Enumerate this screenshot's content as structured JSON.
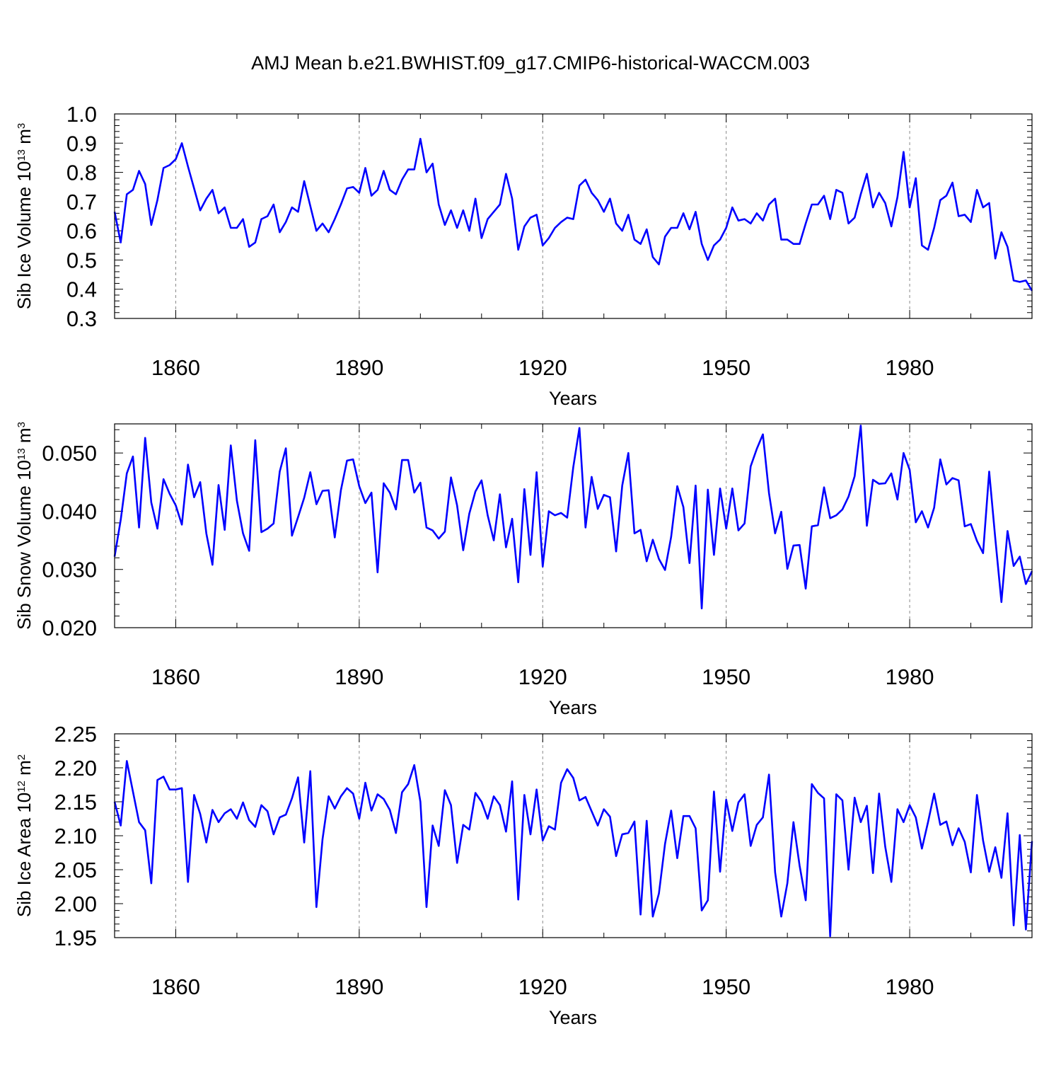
{
  "title": "AMJ Mean b.e21.BWHIST.f09_g17.CMIP6-historical-WACCM.003",
  "colors": {
    "line": "#0000ff",
    "axis": "#000000",
    "grid": "#888888"
  },
  "chart_data": [
    {
      "type": "line",
      "ylabel": "Sib Ice Volume 10",
      "ylabel_sup": "13",
      "ylabel_unit": " m",
      "ylabel_unit_sup": "3",
      "xlabel": "Years",
      "xlim": [
        1850,
        2000
      ],
      "ylim": [
        0.3,
        1.0
      ],
      "xticks": [
        1860,
        1890,
        1920,
        1950,
        1980
      ],
      "xtick_labels": [
        "1860",
        "1890",
        "1920",
        "1950",
        "1980"
      ],
      "yticks": [
        0.3,
        0.4,
        0.5,
        0.6,
        0.7,
        0.8,
        0.9,
        1.0
      ],
      "ytick_labels": [
        "0.3",
        "0.4",
        "0.5",
        "0.6",
        "0.7",
        "0.8",
        "0.9",
        "1.0"
      ],
      "series": [
        {
          "name": "Sib Ice Volume",
          "start_year": 1850,
          "values": [
            0.665,
            0.56,
            0.725,
            0.74,
            0.805,
            0.76,
            0.62,
            0.705,
            0.815,
            0.825,
            0.845,
            0.9,
            0.82,
            0.745,
            0.67,
            0.71,
            0.74,
            0.66,
            0.68,
            0.61,
            0.61,
            0.64,
            0.545,
            0.56,
            0.64,
            0.65,
            0.69,
            0.595,
            0.63,
            0.68,
            0.665,
            0.77,
            0.685,
            0.6,
            0.625,
            0.595,
            0.64,
            0.69,
            0.745,
            0.75,
            0.73,
            0.815,
            0.72,
            0.74,
            0.805,
            0.74,
            0.725,
            0.775,
            0.81,
            0.81,
            0.915,
            0.8,
            0.83,
            0.69,
            0.62,
            0.67,
            0.61,
            0.67,
            0.6,
            0.71,
            0.575,
            0.64,
            0.665,
            0.69,
            0.795,
            0.71,
            0.535,
            0.615,
            0.645,
            0.655,
            0.55,
            0.575,
            0.61,
            0.63,
            0.645,
            0.64,
            0.755,
            0.775,
            0.73,
            0.705,
            0.665,
            0.71,
            0.625,
            0.6,
            0.655,
            0.57,
            0.555,
            0.605,
            0.51,
            0.485,
            0.58,
            0.61,
            0.61,
            0.66,
            0.605,
            0.665,
            0.555,
            0.5,
            0.55,
            0.57,
            0.61,
            0.68,
            0.635,
            0.64,
            0.625,
            0.66,
            0.635,
            0.69,
            0.71,
            0.57,
            0.57,
            0.555,
            0.555,
            0.625,
            0.69,
            0.69,
            0.72,
            0.64,
            0.74,
            0.73,
            0.625,
            0.645,
            0.725,
            0.795,
            0.68,
            0.73,
            0.695,
            0.615,
            0.715,
            0.87,
            0.68,
            0.78,
            0.55,
            0.535,
            0.61,
            0.705,
            0.72,
            0.765,
            0.65,
            0.655,
            0.63,
            0.74,
            0.68,
            0.695,
            0.505,
            0.595,
            0.545,
            0.43,
            0.425,
            0.43,
            0.395
          ]
        }
      ]
    },
    {
      "type": "line",
      "ylabel": "Sib Snow Volume 10",
      "ylabel_sup": "13",
      "ylabel_unit": " m",
      "ylabel_unit_sup": "3",
      "xlabel": "Years",
      "xlim": [
        1850,
        2000
      ],
      "ylim": [
        0.02,
        0.055
      ],
      "xticks": [
        1860,
        1890,
        1920,
        1950,
        1980
      ],
      "xtick_labels": [
        "1860",
        "1890",
        "1920",
        "1950",
        "1980"
      ],
      "yticks": [
        0.02,
        0.03,
        0.04,
        0.05
      ],
      "ytick_labels": [
        "0.020",
        "0.030",
        "0.040",
        "0.050"
      ],
      "series": [
        {
          "name": "Sib Snow Volume",
          "start_year": 1850,
          "values": [
            0.0322,
            0.0385,
            0.0465,
            0.0494,
            0.0372,
            0.0526,
            0.0415,
            0.037,
            0.0455,
            0.043,
            0.041,
            0.0377,
            0.048,
            0.0424,
            0.045,
            0.0362,
            0.0308,
            0.0445,
            0.0368,
            0.0513,
            0.0418,
            0.0362,
            0.0332,
            0.0522,
            0.0364,
            0.037,
            0.0379,
            0.0468,
            0.0508,
            0.0358,
            0.039,
            0.0423,
            0.0467,
            0.0412,
            0.0435,
            0.0436,
            0.0355,
            0.0436,
            0.0487,
            0.0489,
            0.0443,
            0.0414,
            0.0432,
            0.0295,
            0.0448,
            0.0432,
            0.0403,
            0.0488,
            0.0488,
            0.0432,
            0.0449,
            0.0372,
            0.0367,
            0.0353,
            0.0365,
            0.0458,
            0.041,
            0.0333,
            0.0396,
            0.0434,
            0.0453,
            0.0393,
            0.035,
            0.0429,
            0.0338,
            0.0387,
            0.0278,
            0.0438,
            0.0325,
            0.0467,
            0.0305,
            0.04,
            0.0393,
            0.0397,
            0.0389,
            0.0476,
            0.0543,
            0.0372,
            0.0459,
            0.0404,
            0.0428,
            0.0424,
            0.0331,
            0.0444,
            0.05,
            0.0362,
            0.0368,
            0.0314,
            0.0351,
            0.0318,
            0.0299,
            0.0356,
            0.0443,
            0.0407,
            0.0311,
            0.0444,
            0.0233,
            0.0437,
            0.0325,
            0.0439,
            0.037,
            0.0439,
            0.0367,
            0.0379,
            0.0477,
            0.0507,
            0.0532,
            0.0431,
            0.0362,
            0.0399,
            0.0301,
            0.0341,
            0.0342,
            0.0267,
            0.0374,
            0.0376,
            0.0441,
            0.0388,
            0.0393,
            0.0403,
            0.0425,
            0.046,
            0.0547,
            0.0375,
            0.0454,
            0.0447,
            0.0448,
            0.0465,
            0.042,
            0.05,
            0.0471,
            0.0381,
            0.04,
            0.0372,
            0.0406,
            0.0489,
            0.0446,
            0.0457,
            0.0453,
            0.0374,
            0.0378,
            0.0349,
            0.0328,
            0.0468,
            0.0353,
            0.0244,
            0.0366,
            0.0306,
            0.0322,
            0.0275,
            0.0297
          ]
        }
      ]
    },
    {
      "type": "line",
      "ylabel": "Sib Ice Area 10",
      "ylabel_sup": "12",
      "ylabel_unit": " m",
      "ylabel_unit_sup": "2",
      "xlabel": "Years",
      "xlim": [
        1850,
        2000
      ],
      "ylim": [
        1.95,
        2.25
      ],
      "xticks": [
        1860,
        1890,
        1920,
        1950,
        1980
      ],
      "xtick_labels": [
        "1860",
        "1890",
        "1920",
        "1950",
        "1980"
      ],
      "yticks": [
        1.95,
        2.0,
        2.05,
        2.1,
        2.15,
        2.2,
        2.25
      ],
      "ytick_labels": [
        "1.95",
        "2.00",
        "2.05",
        "2.10",
        "2.15",
        "2.20",
        "2.25"
      ],
      "series": [
        {
          "name": "Sib Ice Area",
          "start_year": 1850,
          "values": [
            2.15,
            2.115,
            2.21,
            2.165,
            2.12,
            2.108,
            2.03,
            2.182,
            2.187,
            2.168,
            2.168,
            2.17,
            2.032,
            2.16,
            2.132,
            2.09,
            2.138,
            2.12,
            2.133,
            2.139,
            2.125,
            2.149,
            2.123,
            2.113,
            2.145,
            2.136,
            2.102,
            2.127,
            2.131,
            2.155,
            2.186,
            2.09,
            2.195,
            1.995,
            2.095,
            2.158,
            2.14,
            2.158,
            2.17,
            2.162,
            2.125,
            2.178,
            2.137,
            2.161,
            2.154,
            2.138,
            2.104,
            2.164,
            2.176,
            2.204,
            2.15,
            1.995,
            2.115,
            2.085,
            2.167,
            2.145,
            2.06,
            2.116,
            2.109,
            2.163,
            2.15,
            2.125,
            2.158,
            2.145,
            2.106,
            2.18,
            2.006,
            2.16,
            2.102,
            2.168,
            2.093,
            2.114,
            2.109,
            2.178,
            2.198,
            2.185,
            2.152,
            2.157,
            2.136,
            2.115,
            2.139,
            2.128,
            2.07,
            2.102,
            2.104,
            2.121,
            1.984,
            2.122,
            1.981,
            2.015,
            2.088,
            2.137,
            2.067,
            2.129,
            2.129,
            2.111,
            1.99,
            2.005,
            2.165,
            2.047,
            2.153,
            2.107,
            2.149,
            2.161,
            2.085,
            2.116,
            2.127,
            2.19,
            2.046,
            1.981,
            2.03,
            2.12,
            2.056,
            2.005,
            2.176,
            2.163,
            2.155,
            1.952,
            2.161,
            2.152,
            2.05,
            2.156,
            2.12,
            2.144,
            2.045,
            2.162,
            2.084,
            2.032,
            2.139,
            2.12,
            2.145,
            2.127,
            2.081,
            2.12,
            2.162,
            2.116,
            2.121,
            2.086,
            2.111,
            2.091,
            2.046,
            2.16,
            2.093,
            2.047,
            2.083,
            2.038,
            2.133,
            1.968,
            2.101,
            1.962,
            2.092
          ]
        }
      ]
    }
  ]
}
